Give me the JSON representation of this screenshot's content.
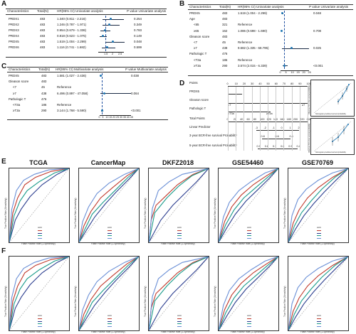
{
  "panels": {
    "A": {
      "label": "A",
      "headers": [
        "Characteristics",
        "Total(N)",
        "HR(95% CI) Univariate analysis",
        "",
        "P value Univariate analysis"
      ],
      "rows": [
        {
          "name": "PRDX1",
          "n": "483",
          "hr": "1.340 (0.811 - 2.216)",
          "p": "0.254",
          "est": 1.34,
          "lo": 0.811,
          "hi": 2.216
        },
        {
          "name": "PRDX2",
          "n": "483",
          "hr": "1.246 (0.787 - 1.971)",
          "p": "0.349",
          "est": 1.246,
          "lo": 0.787,
          "hi": 1.971
        },
        {
          "name": "PRDX3",
          "n": "483",
          "hr": "0.954 (0.679 - 1.338)",
          "p": "0.783",
          "est": 0.954,
          "lo": 0.679,
          "hi": 1.338
        },
        {
          "name": "PRDX4",
          "n": "483",
          "hr": "0.818 (0.623 - 1.075)",
          "p": "0.149",
          "est": 0.818,
          "lo": 0.623,
          "hi": 1.075
        },
        {
          "name": "PRDX5",
          "n": "483",
          "hr": "1.519 (1.004 - 2.299)",
          "p": "0.048",
          "est": 1.519,
          "lo": 1.004,
          "hi": 2.299
        },
        {
          "name": "PRDX6",
          "n": "483",
          "hr": "1.116 (0.741 - 1.682)",
          "p": "0.599",
          "est": 1.116,
          "lo": 0.741,
          "hi": 1.682
        }
      ],
      "ticks": [
        "1.5",
        "2",
        "2.5"
      ]
    },
    "B": {
      "label": "B",
      "headers": [
        "Characteristics",
        "Total(N)",
        "HR(95% CI) Univariate analysis",
        "",
        "P value Univariate analysis"
      ],
      "rows": [
        {
          "name": "PRDX5",
          "n": "483",
          "hr": "1.519 (1.004 - 2.299)",
          "p": "0.048"
        },
        {
          "name": "Age",
          "n": "483",
          "hr": "",
          "p": ""
        },
        {
          "name": "<65",
          "n": "321",
          "hr": "Reference",
          "p": ""
        },
        {
          "name": "≥65",
          "n": "162",
          "hr": "1.086 (0.698 - 1.690)",
          "p": "0.708"
        },
        {
          "name": "Gleason score",
          "n": "483",
          "hr": "",
          "p": ""
        },
        {
          "name": "<7",
          "n": "45",
          "hr": "Reference",
          "p": ""
        },
        {
          "name": "≥7",
          "n": "438",
          "hr": "9.582 (1.335 - 68.795)",
          "p": "0.025"
        },
        {
          "name": "Pathologic T",
          "n": "476",
          "hr": "",
          "p": ""
        },
        {
          "name": "<T3a",
          "n": "186",
          "hr": "Reference",
          "p": ""
        },
        {
          "name": "≥T3a",
          "n": "290",
          "hr": "3.574 (2.015 - 6.339)",
          "p": "<0.001"
        }
      ],
      "ticks": [
        "0",
        "5",
        "10",
        "15",
        "20",
        "25"
      ]
    },
    "C": {
      "label": "C",
      "headers": [
        "Characteristics",
        "Total(N)",
        "HR(95% CI) Multivariate analysis",
        "",
        "P value Multivariate analysis"
      ],
      "rows": [
        {
          "name": "PRDX5",
          "n": "483",
          "hr": "1.581 (1.027 - 2.436)",
          "p": "0.038"
        },
        {
          "name": "Gleason score",
          "n": "483",
          "hr": "",
          "p": ""
        },
        {
          "name": "<7",
          "n": "45",
          "hr": "Reference",
          "p": ""
        },
        {
          "name": "≥7",
          "n": "438",
          "hr": "6.496 (0.897 - 47.058)",
          "p": "0.064"
        },
        {
          "name": "Pathologic T",
          "n": "476",
          "hr": "",
          "p": ""
        },
        {
          "name": "<T3a",
          "n": "186",
          "hr": "Reference",
          "p": ""
        },
        {
          "name": "≥T3a",
          "n": "290",
          "hr": "3.144 (1.768 - 5.590)",
          "p": "<0.001"
        }
      ],
      "ticks": [
        "0",
        "5",
        "10",
        "15",
        "20",
        "25",
        "30",
        "35",
        "40",
        "45"
      ]
    },
    "D": {
      "label": "D",
      "rows": [
        "Points",
        "PRDX5",
        "Gleason score",
        "Pathologic T",
        "Total Points",
        "Linear Predictor",
        "3-year BCR-free survival Probability",
        "5-year BCR-free survival Probability"
      ],
      "points_ticks": [
        "0",
        "10",
        "20",
        "30",
        "40",
        "50",
        "60",
        "70",
        "80",
        "90",
        "100"
      ],
      "total_ticks": [
        "0",
        "20",
        "40",
        "60",
        "80",
        "100",
        "120",
        "140",
        "160",
        "180",
        "200",
        "220",
        "240"
      ],
      "lp_ticks": [
        "-3",
        "-2",
        "-1",
        "0",
        "1",
        "2"
      ],
      "surv3_ticks": [
        "0.8",
        "0.6",
        "0.4"
      ],
      "surv5_ticks": [
        "0.9",
        "0.8",
        "0.7",
        "0.6",
        "0.5",
        "0.4"
      ],
      "gleason_marks": [
        "<7",
        "≥7"
      ],
      "patht_marks": [
        "<T3a",
        "≥T3a"
      ],
      "calib_ylabel": "Observed BCR-free survival probability",
      "calib_xlabel": "Nomogram-predicted survival probability"
    },
    "E": {
      "label": "E"
    },
    "F": {
      "label": "F"
    }
  },
  "roc": {
    "titles": [
      "TCGA",
      "CancerMap",
      "DKFZ2018",
      "GSE54460",
      "GSE70769"
    ],
    "ylabel": "True Positive Rate (Sensitivity)",
    "xlabel": "False Positive Rate (1-Specificity)",
    "legend_title": "AUC",
    "colors": [
      "#c0392b",
      "#2c3e8f",
      "#1a9b8a",
      "#6a8fd6"
    ]
  }
}
